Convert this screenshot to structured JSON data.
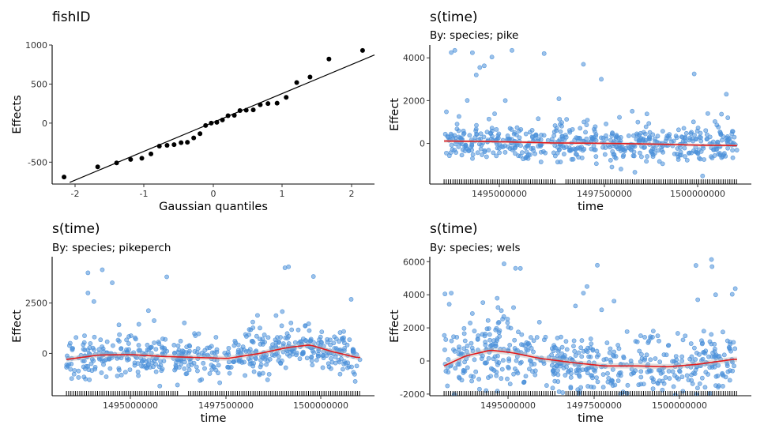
{
  "chart_data": [
    {
      "type": "scatter",
      "title": "fishID",
      "subtitle": "",
      "xlabel": "Gaussian quantiles",
      "ylabel": "Effects",
      "xlim": [
        -2.3,
        2.3
      ],
      "ylim": [
        -780,
        1000
      ],
      "xticks": [
        "-2",
        "-1",
        "0",
        "1",
        "2"
      ],
      "yticks": [
        "-500",
        "0",
        "500",
        "1000"
      ],
      "reference_line": {
        "slope": 375,
        "intercept": 10
      },
      "points": [
        [
          -2.13,
          -690
        ],
        [
          -1.65,
          -560
        ],
        [
          -1.38,
          -510
        ],
        [
          -1.18,
          -465
        ],
        [
          -1.02,
          -450
        ],
        [
          -0.89,
          -395
        ],
        [
          -0.77,
          -295
        ],
        [
          -0.66,
          -285
        ],
        [
          -0.56,
          -275
        ],
        [
          -0.46,
          -250
        ],
        [
          -0.37,
          -245
        ],
        [
          -0.28,
          -190
        ],
        [
          -0.19,
          -135
        ],
        [
          -0.11,
          -30
        ],
        [
          -0.03,
          0
        ],
        [
          0.05,
          10
        ],
        [
          0.13,
          40
        ],
        [
          0.21,
          95
        ],
        [
          0.3,
          100
        ],
        [
          0.38,
          160
        ],
        [
          0.47,
          165
        ],
        [
          0.57,
          170
        ],
        [
          0.67,
          235
        ],
        [
          0.78,
          250
        ],
        [
          0.91,
          255
        ],
        [
          1.04,
          330
        ],
        [
          1.19,
          520
        ],
        [
          1.38,
          590
        ],
        [
          1.65,
          820
        ],
        [
          2.13,
          930
        ]
      ]
    },
    {
      "type": "scatter",
      "title": "s(time)",
      "subtitle": "By: species; pike",
      "xlabel": "time",
      "ylabel": "Effect",
      "xlim": [
        1492500000,
        1501500000
      ],
      "ylim": [
        -1900,
        4600
      ],
      "xticks": [
        "1495000000",
        "1497500000",
        "1500000000"
      ],
      "yticks": [
        "0",
        "2000",
        "4000"
      ],
      "series": [
        {
          "role": "partial residuals",
          "color": "#4a90d9"
        },
        {
          "role": "smooth",
          "color": "#e31a1c",
          "x": [
            1492900000,
            1494000000,
            1495000000,
            1496000000,
            1497000000,
            1498000000,
            1499000000,
            1500000000,
            1501000000
          ],
          "y": [
            110,
            90,
            60,
            20,
            10,
            -10,
            -40,
            -80,
            -100
          ]
        }
      ],
      "outliers": [
        [
          1493100000,
          4250
        ],
        [
          1493200000,
          4350
        ],
        [
          1493900000,
          3550
        ],
        [
          1493800000,
          3200
        ],
        [
          1494800000,
          4350
        ],
        [
          1495700000,
          4200
        ],
        [
          1496800000,
          3700
        ],
        [
          1497300000,
          3000
        ],
        [
          1499900000,
          3250
        ],
        [
          1500800000,
          2300
        ]
      ]
    },
    {
      "type": "scatter",
      "title": "s(time)",
      "subtitle": "By: species; pikeperch",
      "xlabel": "time",
      "ylabel": "Effect",
      "xlim": [
        1492500000,
        1501500000
      ],
      "ylim": [
        -2100,
        4800
      ],
      "xticks": [
        "1495000000",
        "1497500000",
        "1500000000"
      ],
      "yticks": [
        "0",
        "2500"
      ],
      "series": [
        {
          "role": "partial residuals",
          "color": "#4a90d9"
        },
        {
          "role": "smooth",
          "color": "#e31a1c",
          "x": [
            1492900000,
            1493800000,
            1494700000,
            1495600000,
            1496500000,
            1497400000,
            1498300000,
            1499100000,
            1499700000,
            1500300000,
            1501000000
          ],
          "y": [
            -300,
            -80,
            -60,
            -150,
            -200,
            -250,
            0,
            300,
            420,
            100,
            -200
          ]
        }
      ],
      "outliers": [
        [
          1493500000,
          4000
        ],
        [
          1493900000,
          4150
        ],
        [
          1495700000,
          3800
        ],
        [
          1499000000,
          4250
        ],
        [
          1499100000,
          4300
        ],
        [
          1493500000,
          3000
        ]
      ]
    },
    {
      "type": "scatter",
      "title": "s(time)",
      "subtitle": "By: species; wels",
      "xlabel": "time",
      "ylabel": "Effect",
      "xlim": [
        1492500000,
        1501500000
      ],
      "ylim": [
        -2100,
        6300
      ],
      "xticks": [
        "1495000000",
        "1497500000",
        "1500000000"
      ],
      "yticks": [
        "-2000",
        "0",
        "2000",
        "4000",
        "6000"
      ],
      "series": [
        {
          "role": "partial residuals",
          "color": "#4a90d9"
        },
        {
          "role": "smooth",
          "color": "#e31a1c",
          "x": [
            1492900000,
            1493500000,
            1494200000,
            1494800000,
            1495600000,
            1496500000,
            1497400000,
            1498300000,
            1499200000,
            1500000000,
            1501000000
          ],
          "y": [
            -300,
            300,
            650,
            500,
            150,
            -100,
            -300,
            -300,
            -350,
            -200,
            100
          ]
        }
      ],
      "outliers": [
        [
          1494900000,
          5600
        ],
        [
          1500400000,
          5700
        ],
        [
          1493100000,
          4100
        ],
        [
          1496900000,
          4500
        ],
        [
          1496800000,
          4100
        ],
        [
          1500500000,
          4000
        ],
        [
          1500000000,
          3700
        ]
      ]
    }
  ]
}
